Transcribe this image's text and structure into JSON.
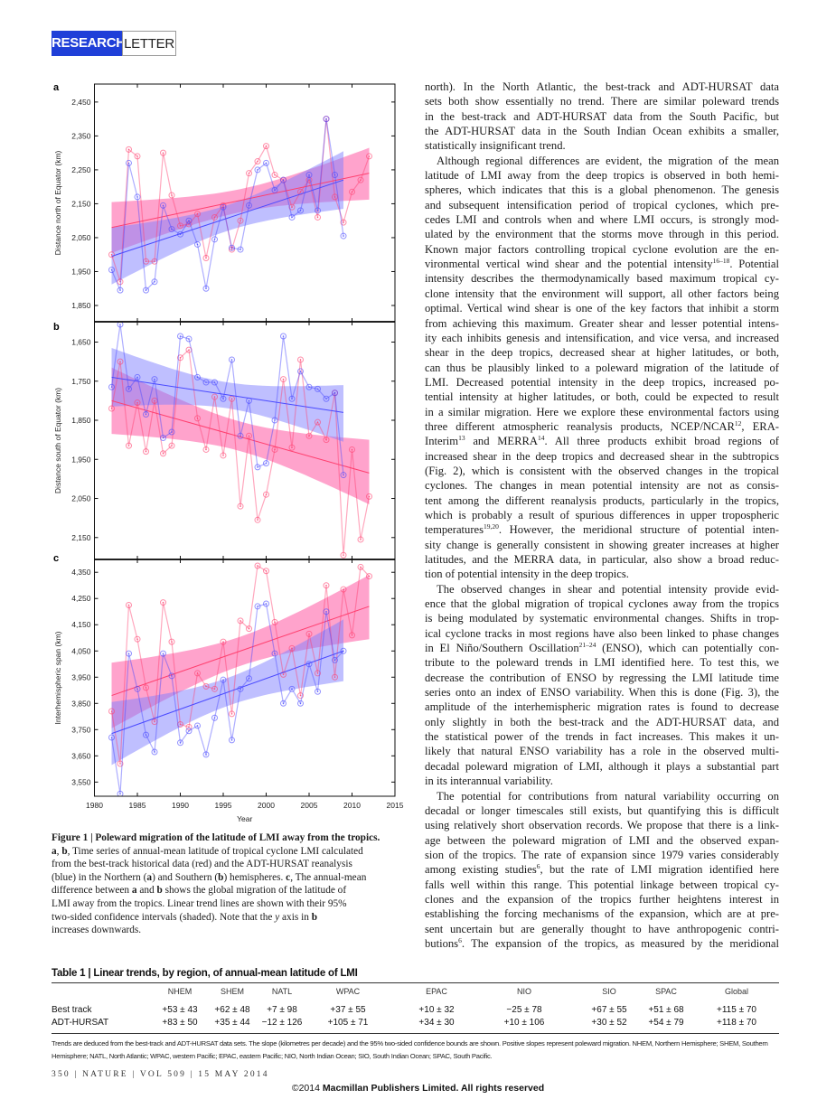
{
  "header": {
    "section": "RESEARCH",
    "type": "LETTER"
  },
  "body_paragraphs": [
    {
      "indent": false,
      "lines": [
        "north). In the North Atlantic, the best-track and ADT-HURSAT data",
        "sets both show essentially no trend. There are similar poleward trends",
        "in the best-track and ADT-HURSAT data from the South Pacific, but",
        "the ADT-HURSAT data in the South Indian Ocean exhibits a smaller,",
        "statistically insignificant trend."
      ]
    },
    {
      "indent": true,
      "lines": [
        "Although regional differences are evident, the migration of the mean",
        "latitude of LMI away from the deep tropics is observed in both hemi-",
        "spheres, which indicates that this is a global phenomenon. The genesis",
        "and subsequent intensification period of tropical cyclones, which pre-",
        "cedes LMI and controls when and where LMI occurs, is strongly mod-",
        "ulated by the environment that the storms move through in this period.",
        "Known major factors controlling tropical cyclone evolution are the en-",
        [
          "vironmental vertical wind shear and the potential intensity",
          {
            "sup": "16–18"
          },
          ". Potential"
        ],
        "intensity describes the thermodynamically based maximum tropical cy-",
        "clone intensity that the environment will support, all other factors being",
        "optimal. Vertical wind shear is one of the key factors that inhibit a storm",
        "from achieving this maximum. Greater shear and lesser potential intens-",
        "ity each inhibits genesis and intensification, and vice versa, and increased",
        "shear in the deep tropics, decreased shear at higher latitudes, or both,",
        "can thus be plausibly linked to a poleward migration of the latitude of",
        "LMI. Decreased potential intensity in the deep tropics, increased po-",
        "tential intensity at higher latitudes, or both, could be expected to result",
        "in a similar migration. Here we explore these environmental factors using",
        [
          "three different atmospheric reanalysis products, NCEP/NCAR",
          {
            "sup": "12"
          },
          ", ERA-"
        ],
        [
          "Interim",
          {
            "sup": "13"
          },
          " and MERRA",
          {
            "sup": "14"
          },
          ". All three products exhibit broad regions of"
        ],
        "increased shear in the deep tropics and decreased shear in the subtropics",
        "(Fig. 2), which is consistent with the observed changes in the tropical",
        "cyclones. The changes in mean potential intensity are not as consis-",
        "tent among the different reanalysis products, particularly in the tropics,",
        "which is probably a result of spurious differences in upper tropospheric",
        [
          "temperatures",
          {
            "sup": "19,20"
          },
          ". However, the meridional structure of potential inten-"
        ],
        "sity change is generally consistent in showing greater increases at higher",
        "latitudes, and the MERRA data, in particular, also show a broad reduc-",
        "tion of potential intensity in the deep tropics."
      ]
    },
    {
      "indent": true,
      "lines": [
        "The observed changes in shear and potential intensity provide evid-",
        "ence that the global migration of tropical cyclones away from the tropics",
        "is being modulated by systematic environmental changes. Shifts in trop-",
        "ical cyclone tracks in most regions have also been linked to phase changes",
        [
          "in El Niño/Southern Oscillation",
          {
            "sup": "21–24"
          },
          " (ENSO), which can potentially con-"
        ],
        "tribute to the poleward trends in LMI identified here. To test this, we",
        "decrease the contribution of ENSO by regressing the LMI latitude time",
        "series onto an index of ENSO variability. When this is done (Fig. 3), the",
        "amplitude of the interhemispheric migration rates is found to decrease",
        "only slightly in both the best-track and the ADT-HURSAT data, and",
        "the statistical power of the trends in fact increases. This makes it un-",
        "likely that natural ENSO variability has a role in the observed multi-",
        "decadal poleward migration of LMI, although it plays a substantial part",
        "in its interannual variability."
      ]
    },
    {
      "indent": true,
      "continues": true,
      "lines": [
        "The potential for contributions from natural variability occurring on",
        "decadal or longer timescales still exists, but quantifying this is difficult",
        "using relatively short observation records. We propose that there is a link-",
        "age between the poleward migration of LMI and the observed expan-",
        "sion of the tropics. The rate of expansion since 1979 varies considerably",
        [
          "among existing studies",
          {
            "sup": "6"
          },
          ", but the rate of LMI migration identified here"
        ],
        "falls well within this range. This potential linkage between tropical cy-",
        "clones and the expansion of the tropics further heightens interest in",
        "establishing the forcing mechanisms of the expansion, which are at pre-",
        "sent uncertain but are generally thought to have anthropogenic contri-",
        [
          "butions",
          {
            "sup": "6"
          },
          ". The expansion of the tropics, as measured by the meridional"
        ]
      ]
    }
  ],
  "caption": [
    [
      {
        "t": "Figure 1 | Poleward migration of the latitude of LMI away from the tropics.",
        "b": true
      }
    ],
    [
      {
        "t": "a",
        "b": true
      },
      {
        "t": ", "
      },
      {
        "t": "b",
        "b": true
      },
      {
        "t": ", Time series of annual-mean latitude of tropical cyclone LMI calculated"
      }
    ],
    [
      {
        "t": "from the best-track historical data (red) and the ADT-HURSAT reanalysis"
      }
    ],
    [
      {
        "t": "(blue) in the Northern ("
      },
      {
        "t": "a",
        "b": true
      },
      {
        "t": ") and Southern ("
      },
      {
        "t": "b",
        "b": true
      },
      {
        "t": ") hemispheres. "
      },
      {
        "t": "c",
        "b": true
      },
      {
        "t": ", The annual-mean"
      }
    ],
    [
      {
        "t": "difference between "
      },
      {
        "t": "a",
        "b": true
      },
      {
        "t": " and "
      },
      {
        "t": "b",
        "b": true
      },
      {
        "t": " shows the global migration of the latitude of"
      }
    ],
    [
      {
        "t": "LMI away from the tropics. Linear trend lines are shown with their 95%"
      }
    ],
    [
      {
        "t": "two-sided confidence intervals (shaded). Note that the "
      },
      {
        "t": "y",
        "i": true
      },
      {
        "t": " axis in "
      },
      {
        "t": "b",
        "b": true
      }
    ],
    [
      {
        "t": "increases downwards."
      }
    ]
  ],
  "chart_data": {
    "type": "line",
    "xlabel": "Year",
    "xlim": [
      1980,
      2015
    ],
    "xticks": [
      1980,
      1985,
      1990,
      1995,
      2000,
      2005,
      2010,
      2015
    ],
    "colors": {
      "best_track": "#ff3f6e",
      "adt_hursat": "#4a4aff",
      "best_track_band": "#ff66aa",
      "adt_hursat_band": "#8080ff"
    },
    "panels": [
      {
        "label": "a",
        "ylabel": "Distance north of Equator (km)",
        "ylim": [
          1802,
          2503
        ],
        "y_inverted": false,
        "yticks": [
          1850,
          1950,
          2050,
          2150,
          2250,
          2350,
          2450
        ],
        "ytick_labels": [
          "1,850",
          "1,950",
          "2,050",
          "2,150",
          "2,250",
          "2,350",
          "2,450"
        ],
        "series": [
          {
            "name": "Best track",
            "color_key": "best_track",
            "start_year": 1982,
            "values": [
              2000,
              1920,
              2310,
              2290,
              1980,
              1980,
              2300,
              2175,
              2085,
              2090,
              2120,
              1990,
              2110,
              2145,
              2015,
              2100,
              2240,
              2275,
              2320,
              2235,
              2220,
              2140,
              2185,
              2220,
              2110,
              2400,
              2170,
              2095,
              2185,
              2220,
              2290
            ],
            "trend": {
              "start": [
                1982,
                2080
              ],
              "end": [
                2012,
                2240
              ],
              "ci_start": [
                2005,
                2155
              ],
              "ci_end": [
                2162,
                2315
              ]
            }
          },
          {
            "name": "ADT-HURSAT",
            "color_key": "adt_hursat",
            "start_year": 1982,
            "values": [
              1955,
              1895,
              2270,
              2170,
              1895,
              1920,
              2145,
              2075,
              2060,
              2100,
              2030,
              1900,
              2045,
              2140,
              2020,
              2015,
              2145,
              2250,
              2270,
              2190,
              2220,
              2110,
              2130,
              2235,
              2130,
              2400,
              2235,
              2055
            ],
            "trend": {
              "start": [
                1982,
                1995
              ],
              "end": [
                2009,
                2220
              ],
              "ci_start": [
                1912,
                2080
              ],
              "ci_end": [
                2135,
                2305
              ]
            }
          }
        ]
      },
      {
        "label": "b",
        "ylabel": "Distance south of Equator (km)",
        "ylim": [
          1598,
          2206
        ],
        "y_inverted": true,
        "yticks": [
          1650,
          1750,
          1850,
          1950,
          2050,
          2150
        ],
        "ytick_labels": [
          "1,650",
          "1,750",
          "1,850",
          "1,950",
          "2,050",
          "2,150"
        ],
        "series": [
          {
            "name": "Best track",
            "color_key": "best_track",
            "start_year": 1982,
            "values": [
              1820,
              1700,
              1915,
              1805,
              1930,
              1800,
              1935,
              1915,
              1690,
              1670,
              1845,
              1925,
              1790,
              1940,
              1795,
              2070,
              1890,
              2105,
              2040,
              1925,
              1745,
              1920,
              1695,
              1890,
              1855,
              1900,
              1780,
              2195,
              1925,
              2155,
              2045
            ],
            "trend": {
              "start": [
                1982,
                1800
              ],
              "end": [
                2012,
                1985
              ],
              "ci_start": [
                1715,
                1885
              ],
              "ci_end": [
                1900,
                2065
              ]
            }
          },
          {
            "name": "ADT-HURSAT",
            "color_key": "adt_hursat",
            "start_year": 1982,
            "values": [
              1765,
              1605,
              1770,
              1740,
              1835,
              1745,
              1895,
              1880,
              1635,
              1642,
              1740,
              1753,
              1753,
              1795,
              1695,
              1890,
              1800,
              1970,
              1960,
              1850,
              1635,
              1795,
              1725,
              1765,
              1770,
              1795,
              1780,
              1990
            ],
            "trend": {
              "start": [
                1982,
                1740
              ],
              "end": [
                2009,
                1830
              ],
              "ci_start": [
                1665,
                1815
              ],
              "ci_end": [
                1760,
                1905
              ]
            }
          }
        ]
      },
      {
        "label": "c",
        "ylabel": "Interhemispheric span (km)",
        "ylim": [
          3496,
          4399
        ],
        "y_inverted": false,
        "yticks": [
          3550,
          3650,
          3750,
          3850,
          3950,
          4050,
          4150,
          4250,
          4350
        ],
        "ytick_labels": [
          "3,550",
          "3,650",
          "3,750",
          "3,850",
          "3,950",
          "4,050",
          "4,150",
          "4,250",
          "4,350"
        ],
        "series": [
          {
            "name": "Best track",
            "color_key": "best_track",
            "start_year": 1982,
            "values": [
              3820,
              3620,
              4225,
              4095,
              3910,
              3780,
              4235,
              4085,
              3770,
              3760,
              3965,
              3915,
              3905,
              4085,
              3810,
              4165,
              4135,
              4375,
              4355,
              4160,
              3960,
              4060,
              3880,
              4115,
              3965,
              4300,
              3950,
              4285,
              4110,
              4370,
              4335
            ],
            "trend": {
              "start": [
                1982,
                3880
              ],
              "end": [
                2012,
                4220
              ],
              "ci_start": [
                3755,
                4005
              ],
              "ci_end": [
                4095,
                4340
              ]
            }
          },
          {
            "name": "ADT-HURSAT",
            "color_key": "adt_hursat",
            "start_year": 1982,
            "values": [
              3720,
              3505,
              4040,
              3905,
              3730,
              3665,
              4040,
              3955,
              3700,
              3745,
              3765,
              3655,
              3795,
              3940,
              3710,
              3905,
              3945,
              4220,
              4230,
              4040,
              3850,
              3905,
              3850,
              4000,
              3895,
              4200,
              4015,
              4050
            ],
            "trend": {
              "start": [
                1982,
                3735
              ],
              "end": [
                2009,
                4050
              ],
              "ci_start": [
                3615,
                3855
              ],
              "ci_end": [
                3935,
                4170
              ]
            }
          }
        ]
      }
    ]
  },
  "table": {
    "title": "Table 1 | Linear trends, by region, of annual-mean latitude of LMI",
    "columns": [
      "NHEM",
      "SHEM",
      "NATL",
      "WPAC",
      "EPAC",
      "NIO",
      "SIO",
      "SPAC",
      "Global"
    ],
    "rows": [
      {
        "label": "Best track",
        "values": [
          "+53 ± 43",
          "+62 ± 48",
          "+7 ± 98",
          "+37 ± 55",
          "+10 ± 32",
          "−25 ± 78",
          "+67 ± 55",
          "+51 ± 68",
          "+115 ± 70"
        ]
      },
      {
        "label": "ADT-HURSAT",
        "values": [
          "+83 ± 50",
          "+35 ± 44",
          "−12 ± 126",
          "+105 ± 71",
          "+34 ± 30",
          "+10 ± 106",
          "+30 ± 52",
          "+54 ± 79",
          "+118 ± 70"
        ]
      }
    ],
    "note": "Trends are deduced from the best-track and ADT-HURSAT data sets. The slope (kilometres per decade) and the 95% two-sided confidence bounds are shown. Positive slopes represent poleward migration. NHEM, Northern Hemisphere; SHEM, Southern Hemisphere; NATL, North Atlantic; WPAC, western Pacific; EPAC, eastern Pacific; NIO, North Indian Ocean; SIO, South Indian Ocean; SPAC, South Pacific."
  },
  "footer": {
    "folio": "350 | NATURE | VOL 509 | 15 MAY 2014",
    "copyright_prefix": "©2014",
    "copyright_main": "Macmillan Publishers Limited. All rights reserved"
  }
}
